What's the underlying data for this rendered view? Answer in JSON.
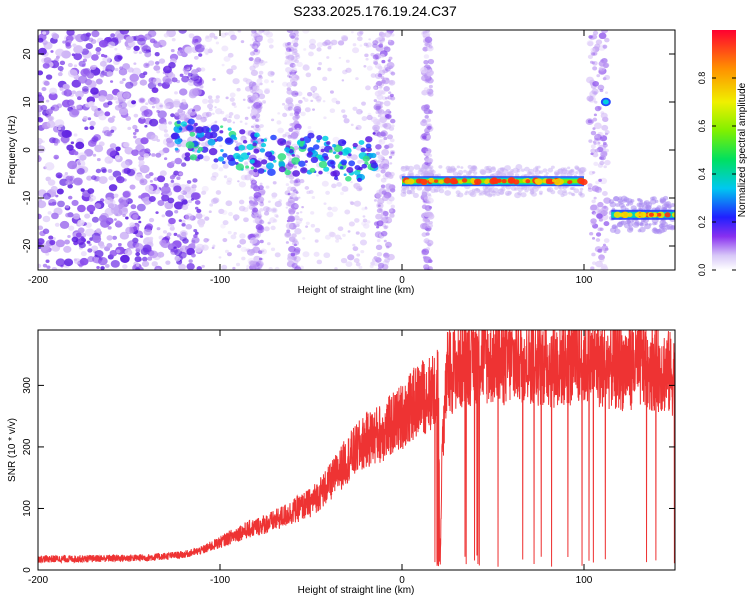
{
  "title": "S233.2025.176.19.24.C37",
  "chart_data": [
    {
      "type": "heatmap",
      "xlabel": "Height of straight line (km)",
      "ylabel": "Frequency (Hz)",
      "xlim": [
        -200,
        150
      ],
      "ylim": [
        -25,
        25
      ],
      "xticks": [
        -200,
        -100,
        0,
        100
      ],
      "yticks": [
        -20,
        -10,
        0,
        10,
        20
      ],
      "colorbar": {
        "label": "Normalized spectral amplitude",
        "range": [
          0,
          1
        ],
        "ticks": [
          "0.0",
          "0.2",
          "0.4",
          "0.6",
          "0.8"
        ]
      },
      "ridges": [
        {
          "x": [
            -125,
            -110,
            -90,
            -70,
            -50,
            -35,
            -25,
            -15
          ],
          "y": [
            2,
            2,
            0,
            -1,
            -1,
            -2,
            -3,
            0
          ]
        },
        {
          "x": [
            0,
            100
          ],
          "y": [
            -6.5,
            -6.5
          ]
        },
        {
          "x": [
            115,
            150
          ],
          "y": [
            -13.5,
            -13.5
          ]
        },
        {
          "x": [
            112,
            112
          ],
          "y": [
            10,
            10
          ]
        }
      ],
      "grid": false
    },
    {
      "type": "line",
      "xlabel": "Height of straight line (km)",
      "ylabel": "SNR (10 * v/v)",
      "xlim": [
        -200,
        150
      ],
      "ylim": [
        0,
        390
      ],
      "xticks": [
        -200,
        -100,
        0,
        100
      ],
      "yticks": [
        0,
        100,
        200,
        300
      ],
      "series": [
        {
          "color": "#ee3333",
          "x": [
            -200,
            -180,
            -160,
            -140,
            -120,
            -110,
            -100,
            -90,
            -80,
            -70,
            -60,
            -50,
            -40,
            -30,
            -20,
            -10,
            0,
            10,
            18,
            20,
            21,
            22,
            25,
            30,
            35,
            40,
            50,
            60,
            70,
            80,
            90,
            100,
            110,
            120,
            130,
            140,
            150
          ],
          "values": [
            18,
            18,
            19,
            20,
            25,
            32,
            45,
            60,
            70,
            80,
            95,
            110,
            140,
            180,
            210,
            225,
            250,
            280,
            290,
            300,
            0,
            200,
            320,
            330,
            335,
            345,
            340,
            340,
            345,
            335,
            338,
            340,
            335,
            330,
            335,
            330,
            315
          ]
        }
      ],
      "grid": false
    }
  ]
}
